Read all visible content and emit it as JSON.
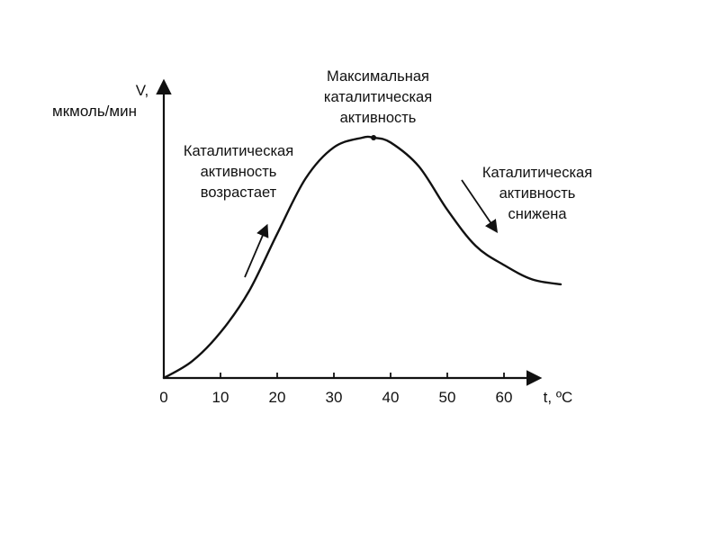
{
  "chart_data": {
    "type": "line",
    "title": "",
    "xlabel": "t, ºC",
    "ylabel_line1": "V,",
    "ylabel_line2": "мкмоль/мин",
    "xlim": [
      0,
      65
    ],
    "x_ticks": [
      0,
      10,
      20,
      30,
      40,
      50,
      60
    ],
    "x_tick_labels": [
      "0",
      "10",
      "20",
      "30",
      "40",
      "50",
      "60"
    ],
    "grid": false,
    "legend": "none",
    "series": [
      {
        "x": [
          0,
          5,
          10,
          15,
          20,
          25,
          30,
          35,
          37,
          40,
          45,
          50,
          55,
          60,
          65,
          70
        ],
        "y": [
          0,
          0.07,
          0.19,
          0.36,
          0.6,
          0.83,
          0.96,
          1.0,
          1.0,
          0.98,
          0.88,
          0.7,
          0.55,
          0.47,
          0.41,
          0.39
        ]
      }
    ],
    "annotations": [
      {
        "name": "increase",
        "lines": [
          "Каталитическая",
          "активность",
          "возрастает"
        ],
        "x": 20,
        "y": 0.6
      },
      {
        "name": "maximum",
        "lines": [
          "Максимальная",
          "каталитическая",
          "активность"
        ],
        "x": 37,
        "y": 1.0
      },
      {
        "name": "decrease",
        "lines": [
          "Каталитическая",
          "активность",
          "снижена"
        ],
        "x": 59,
        "y": 0.6
      }
    ]
  }
}
